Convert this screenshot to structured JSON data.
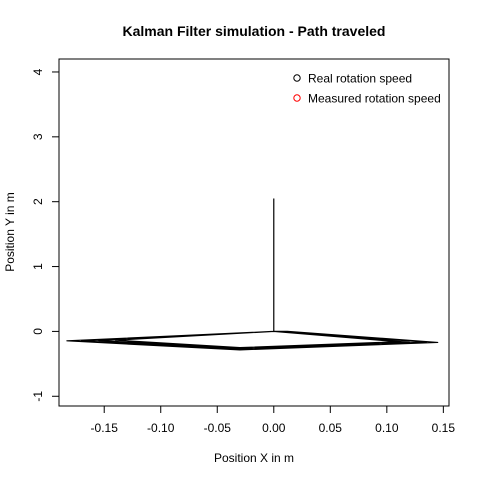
{
  "chart_data": {
    "type": "line",
    "title": "Kalman Filter simulation - Path traveled",
    "xlabel": "Position X in m",
    "ylabel": "Position Y in m",
    "xlim": [
      -0.19,
      0.155
    ],
    "ylim": [
      -1.15,
      4.2
    ],
    "xticks": [
      -0.15,
      -0.1,
      -0.05,
      0.0,
      0.05,
      0.1,
      0.15
    ],
    "xtick_labels": [
      "-0.15",
      "-0.10",
      "-0.05",
      "0.00",
      "0.05",
      "0.10",
      "0.15"
    ],
    "yticks": [
      -1,
      0,
      1,
      2,
      3,
      4
    ],
    "ytick_labels": [
      "-1",
      "0",
      "1",
      "2",
      "3",
      "4"
    ],
    "grid": false,
    "legend": {
      "position": "top-right",
      "entries": [
        {
          "label": "Real rotation speed",
          "color": "#000000",
          "marker": "open-circle"
        },
        {
          "label": "Measured rotation speed",
          "color": "#ff0000",
          "marker": "open-circle"
        }
      ]
    },
    "series": [
      {
        "color": "#000000",
        "points": [
          [
            0.0,
            0.0
          ],
          [
            0.012,
            0.0
          ],
          [
            0.145,
            -0.17
          ],
          [
            -0.03,
            -0.285
          ],
          [
            -0.183,
            -0.145
          ],
          [
            0.0,
            0.0
          ],
          [
            0.0,
            0.0
          ],
          [
            0.135,
            -0.165
          ],
          [
            -0.025,
            -0.272
          ],
          [
            -0.17,
            -0.148
          ],
          [
            0.0,
            0.0
          ],
          [
            0.0,
            0.0
          ],
          [
            0.12,
            -0.168
          ],
          [
            -0.035,
            -0.262
          ],
          [
            -0.155,
            -0.14
          ],
          [
            0.0,
            0.0
          ],
          [
            0.0,
            0.0
          ],
          [
            0.11,
            -0.16
          ],
          [
            -0.03,
            -0.25
          ],
          [
            -0.14,
            -0.135
          ],
          [
            0.0,
            0.0
          ],
          [
            0.0,
            0.0
          ],
          [
            0.0,
            0.2
          ],
          [
            0.0,
            0.4
          ],
          [
            0.0,
            0.6
          ],
          [
            0.0,
            0.8
          ],
          [
            0.0,
            1.0
          ],
          [
            0.0,
            1.2
          ],
          [
            0.0,
            1.4
          ],
          [
            0.0,
            1.6
          ],
          [
            0.0,
            1.8
          ],
          [
            0.0,
            2.05
          ]
        ]
      }
    ]
  }
}
